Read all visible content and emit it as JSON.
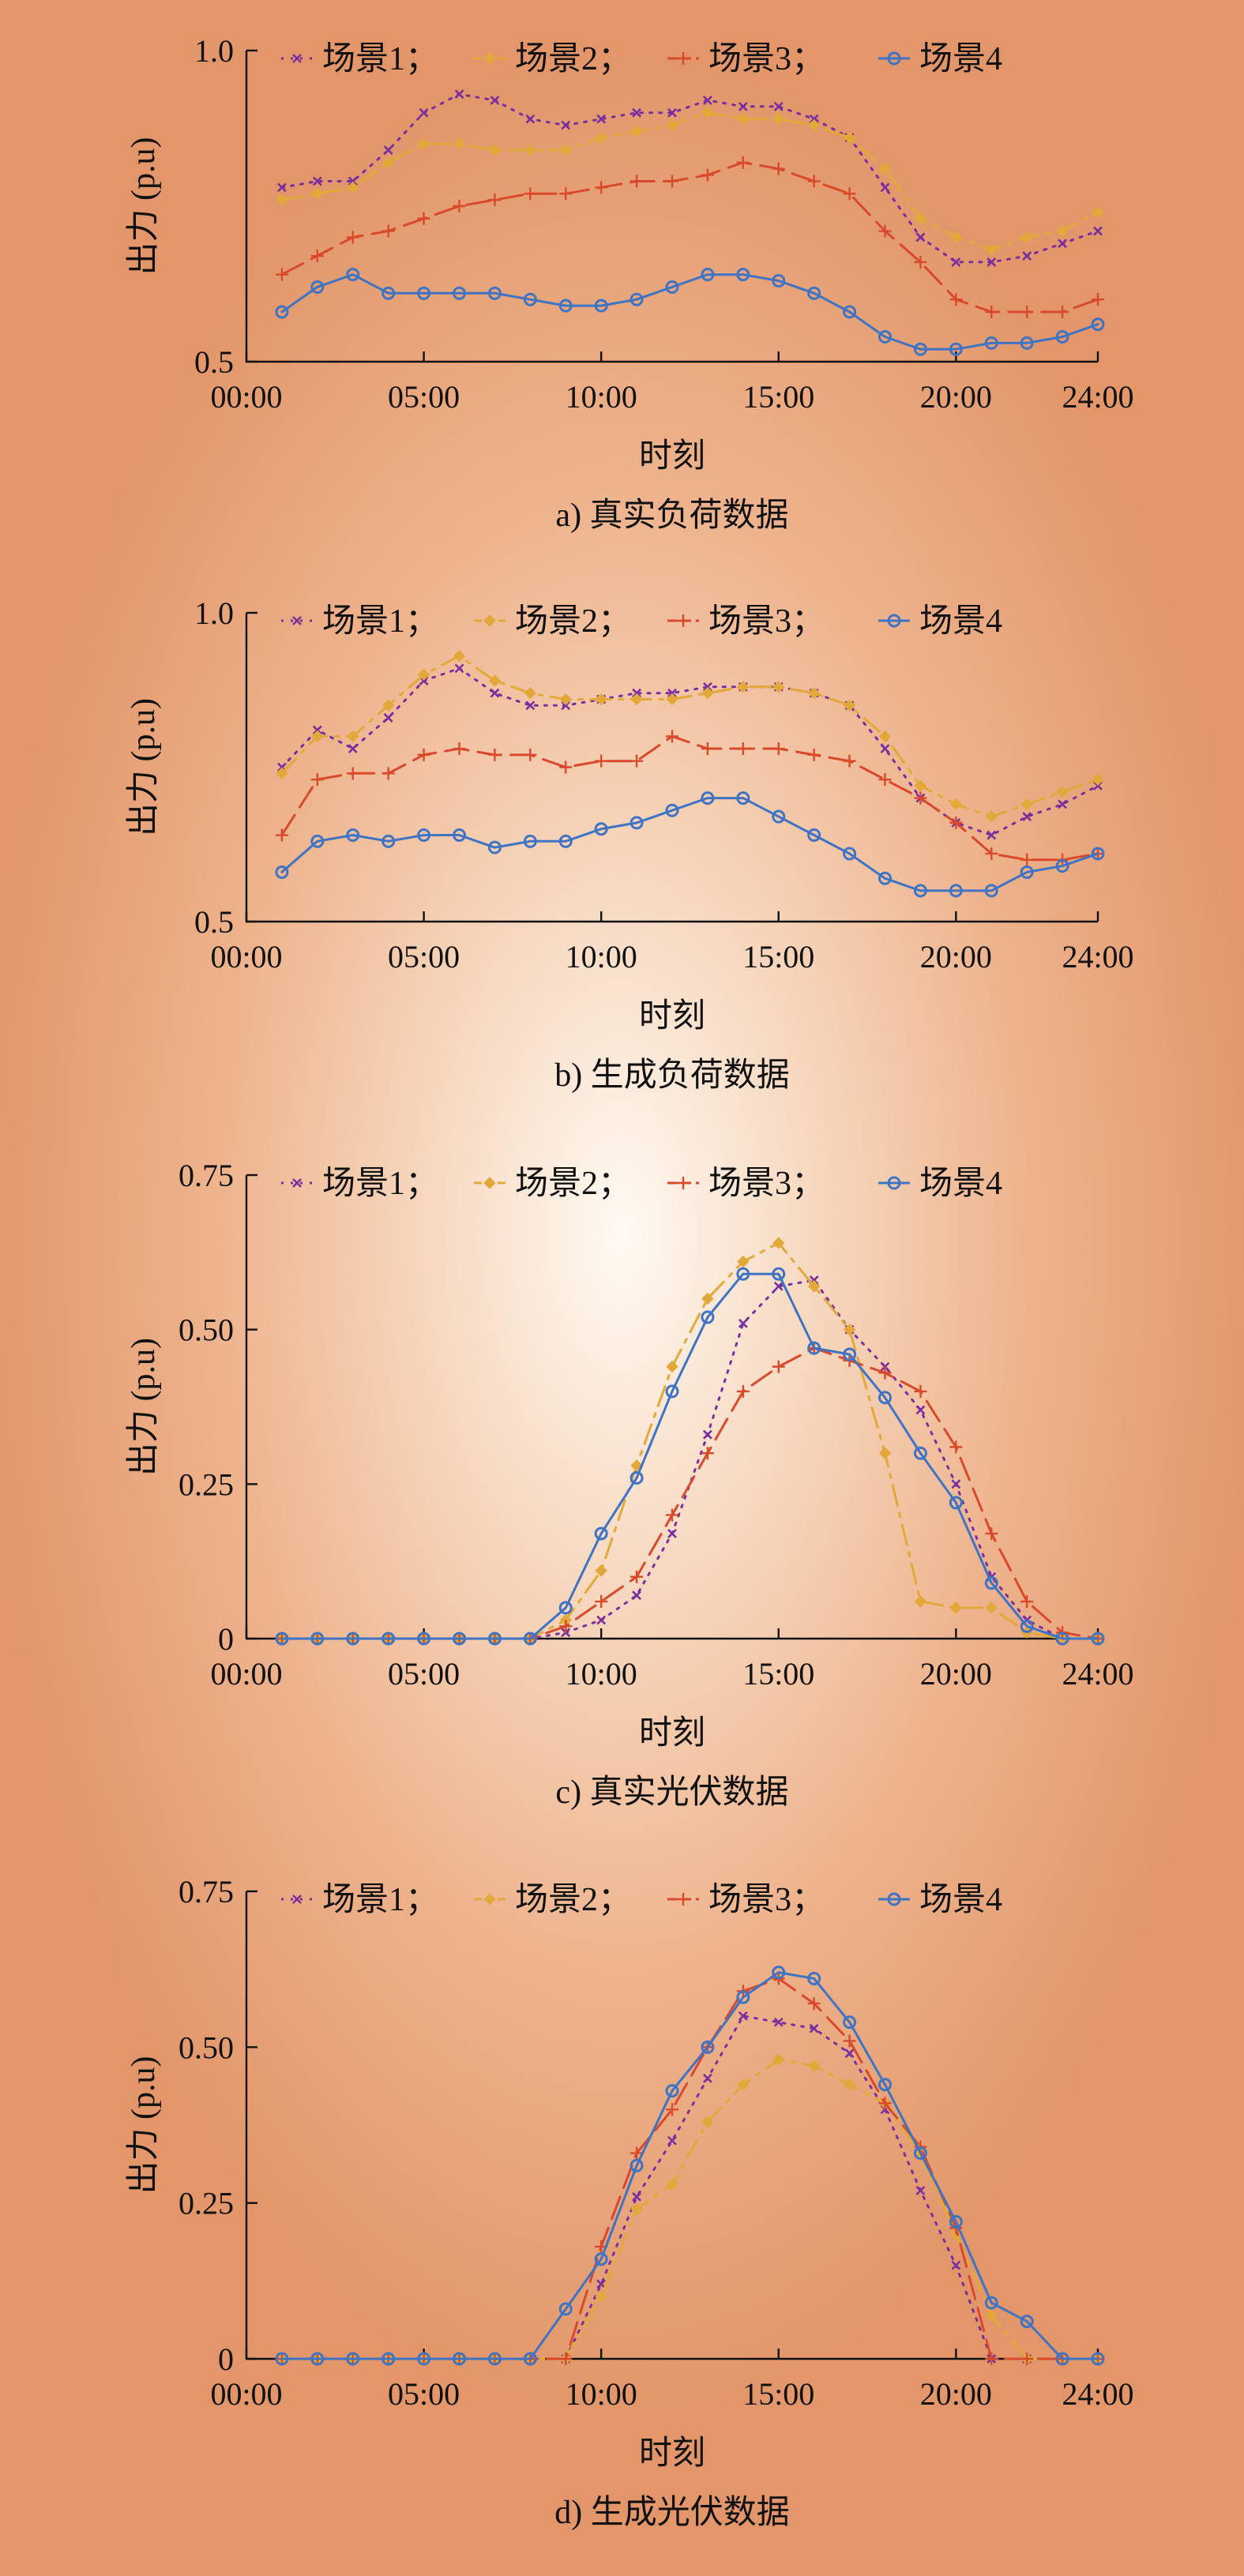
{
  "xlabel": "时刻",
  "ylabel": "出力 (p.u)",
  "x_ticks": [
    "00:00",
    "05:00",
    "10:00",
    "15:00",
    "20:00",
    "24:00"
  ],
  "legend": {
    "s1": "场景1；",
    "s2": "场景2；",
    "s3": "场景3；",
    "s4": "场景4"
  },
  "colors": {
    "s1": "#7b2f9e",
    "s2": "#e2a93a",
    "s3": "#d9492b",
    "s4": "#3f73c4"
  },
  "captions": {
    "a": "a) 真实负荷数据",
    "b": "b) 生成负荷数据",
    "c": "c) 真实光伏数据",
    "d": "d) 生成光伏数据"
  },
  "chart_data": [
    {
      "id": "a",
      "type": "line",
      "title": "a) 真实负荷数据",
      "xlabel": "时刻",
      "ylabel": "出力 (p.u)",
      "xlim": [
        0,
        24
      ],
      "ylim": [
        0.5,
        1.0
      ],
      "y_ticks": [
        "1.0",
        "0.5"
      ],
      "y_tick_values": [
        1.0,
        0.5
      ],
      "x": [
        1,
        2,
        3,
        4,
        5,
        6,
        7,
        8,
        9,
        10,
        11,
        12,
        13,
        14,
        15,
        16,
        17,
        18,
        19,
        20,
        21,
        22,
        23,
        24
      ],
      "series": [
        {
          "name": "场景1；",
          "values": [
            0.78,
            0.79,
            0.79,
            0.84,
            0.9,
            0.93,
            0.92,
            0.89,
            0.88,
            0.89,
            0.9,
            0.9,
            0.92,
            0.91,
            0.91,
            0.89,
            0.86,
            0.78,
            0.7,
            0.66,
            0.66,
            0.67,
            0.69,
            0.71
          ]
        },
        {
          "name": "场景2；",
          "values": [
            0.76,
            0.77,
            0.78,
            0.82,
            0.85,
            0.85,
            0.84,
            0.84,
            0.84,
            0.86,
            0.87,
            0.88,
            0.9,
            0.89,
            0.89,
            0.88,
            0.86,
            0.81,
            0.73,
            0.7,
            0.68,
            0.7,
            0.71,
            0.74
          ]
        },
        {
          "name": "场景3；",
          "values": [
            0.64,
            0.67,
            0.7,
            0.71,
            0.73,
            0.75,
            0.76,
            0.77,
            0.77,
            0.78,
            0.79,
            0.79,
            0.8,
            0.82,
            0.81,
            0.79,
            0.77,
            0.71,
            0.66,
            0.6,
            0.58,
            0.58,
            0.58,
            0.6
          ]
        },
        {
          "name": "场景4",
          "values": [
            0.58,
            0.62,
            0.64,
            0.61,
            0.61,
            0.61,
            0.61,
            0.6,
            0.59,
            0.59,
            0.6,
            0.62,
            0.64,
            0.64,
            0.63,
            0.61,
            0.58,
            0.54,
            0.52,
            0.52,
            0.53,
            0.53,
            0.54,
            0.56
          ]
        }
      ]
    },
    {
      "id": "b",
      "type": "line",
      "title": "b) 生成负荷数据",
      "xlabel": "时刻",
      "ylabel": "出力 (p.u)",
      "xlim": [
        0,
        24
      ],
      "ylim": [
        0.5,
        1.0
      ],
      "y_ticks": [
        "1.0",
        "0.5"
      ],
      "y_tick_values": [
        1.0,
        0.5
      ],
      "x": [
        1,
        2,
        3,
        4,
        5,
        6,
        7,
        8,
        9,
        10,
        11,
        12,
        13,
        14,
        15,
        16,
        17,
        18,
        19,
        20,
        21,
        22,
        23,
        24
      ],
      "series": [
        {
          "name": "场景1；",
          "values": [
            0.75,
            0.81,
            0.78,
            0.83,
            0.89,
            0.91,
            0.87,
            0.85,
            0.85,
            0.86,
            0.87,
            0.87,
            0.88,
            0.88,
            0.88,
            0.87,
            0.85,
            0.78,
            0.7,
            0.66,
            0.64,
            0.67,
            0.69,
            0.72
          ]
        },
        {
          "name": "场景2；",
          "values": [
            0.74,
            0.8,
            0.8,
            0.85,
            0.9,
            0.93,
            0.89,
            0.87,
            0.86,
            0.86,
            0.86,
            0.86,
            0.87,
            0.88,
            0.88,
            0.87,
            0.85,
            0.8,
            0.72,
            0.69,
            0.67,
            0.69,
            0.71,
            0.73
          ]
        },
        {
          "name": "场景3；",
          "values": [
            0.64,
            0.73,
            0.74,
            0.74,
            0.77,
            0.78,
            0.77,
            0.77,
            0.75,
            0.76,
            0.76,
            0.8,
            0.78,
            0.78,
            0.78,
            0.77,
            0.76,
            0.73,
            0.7,
            0.66,
            0.61,
            0.6,
            0.6,
            0.61
          ]
        },
        {
          "name": "场景4",
          "values": [
            0.58,
            0.63,
            0.64,
            0.63,
            0.64,
            0.64,
            0.62,
            0.63,
            0.63,
            0.65,
            0.66,
            0.68,
            0.7,
            0.7,
            0.67,
            0.64,
            0.61,
            0.57,
            0.55,
            0.55,
            0.55,
            0.58,
            0.59,
            0.61
          ]
        }
      ]
    },
    {
      "id": "c",
      "type": "line",
      "title": "c) 真实光伏数据",
      "xlabel": "时刻",
      "ylabel": "出力 (p.u)",
      "xlim": [
        0,
        24
      ],
      "ylim": [
        0,
        0.75
      ],
      "y_ticks": [
        "0.75",
        "0.50",
        "0.25",
        "0"
      ],
      "y_tick_values": [
        0.75,
        0.5,
        0.25,
        0
      ],
      "x": [
        1,
        2,
        3,
        4,
        5,
        6,
        7,
        8,
        9,
        10,
        11,
        12,
        13,
        14,
        15,
        16,
        17,
        18,
        19,
        20,
        21,
        22,
        23,
        24
      ],
      "series": [
        {
          "name": "场景1；",
          "values": [
            0,
            0,
            0,
            0,
            0,
            0,
            0,
            0,
            0.01,
            0.03,
            0.07,
            0.17,
            0.33,
            0.51,
            0.57,
            0.58,
            0.5,
            0.44,
            0.37,
            0.25,
            0.1,
            0.03,
            0,
            0
          ]
        },
        {
          "name": "场景2；",
          "values": [
            0,
            0,
            0,
            0,
            0,
            0,
            0,
            0,
            0.03,
            0.11,
            0.28,
            0.44,
            0.55,
            0.61,
            0.64,
            0.57,
            0.5,
            0.3,
            0.06,
            0.05,
            0.05,
            0.01,
            0,
            0
          ]
        },
        {
          "name": "场景3；",
          "values": [
            0,
            0,
            0,
            0,
            0,
            0,
            0,
            0,
            0.02,
            0.06,
            0.1,
            0.2,
            0.3,
            0.4,
            0.44,
            0.47,
            0.45,
            0.43,
            0.4,
            0.31,
            0.17,
            0.06,
            0.01,
            0
          ]
        },
        {
          "name": "场景4",
          "values": [
            0,
            0,
            0,
            0,
            0,
            0,
            0,
            0,
            0.05,
            0.17,
            0.26,
            0.4,
            0.52,
            0.59,
            0.59,
            0.47,
            0.46,
            0.39,
            0.3,
            0.22,
            0.09,
            0.02,
            0,
            0
          ]
        }
      ]
    },
    {
      "id": "d",
      "type": "line",
      "title": "d) 生成光伏数据",
      "xlabel": "时刻",
      "ylabel": "出力 (p.u)",
      "xlim": [
        0,
        24
      ],
      "ylim": [
        0,
        0.75
      ],
      "y_ticks": [
        "0.75",
        "0.50",
        "0.25",
        "0"
      ],
      "y_tick_values": [
        0.75,
        0.5,
        0.25,
        0
      ],
      "x": [
        1,
        2,
        3,
        4,
        5,
        6,
        7,
        8,
        9,
        10,
        11,
        12,
        13,
        14,
        15,
        16,
        17,
        18,
        19,
        20,
        21,
        22,
        23,
        24
      ],
      "series": [
        {
          "name": "场景1；",
          "values": [
            0,
            0,
            0,
            0,
            0,
            0,
            0,
            0,
            0,
            0.12,
            0.26,
            0.35,
            0.45,
            0.55,
            0.54,
            0.53,
            0.49,
            0.4,
            0.27,
            0.15,
            0,
            0,
            0,
            0
          ]
        },
        {
          "name": "场景2；",
          "values": [
            0,
            0,
            0,
            0,
            0,
            0,
            0,
            0,
            0,
            0.1,
            0.24,
            0.28,
            0.38,
            0.44,
            0.48,
            0.47,
            0.44,
            0.41,
            0.33,
            0.2,
            0.07,
            0,
            0,
            0
          ]
        },
        {
          "name": "场景3；",
          "values": [
            0,
            0,
            0,
            0,
            0,
            0,
            0,
            0,
            0,
            0.18,
            0.33,
            0.4,
            0.5,
            0.59,
            0.61,
            0.57,
            0.51,
            0.41,
            0.34,
            0.21,
            0,
            0,
            0,
            0
          ]
        },
        {
          "name": "场景4",
          "values": [
            0,
            0,
            0,
            0,
            0,
            0,
            0,
            0,
            0.08,
            0.16,
            0.31,
            0.43,
            0.5,
            0.58,
            0.62,
            0.61,
            0.54,
            0.44,
            0.33,
            0.22,
            0.09,
            0.06,
            0,
            0
          ]
        }
      ]
    }
  ]
}
